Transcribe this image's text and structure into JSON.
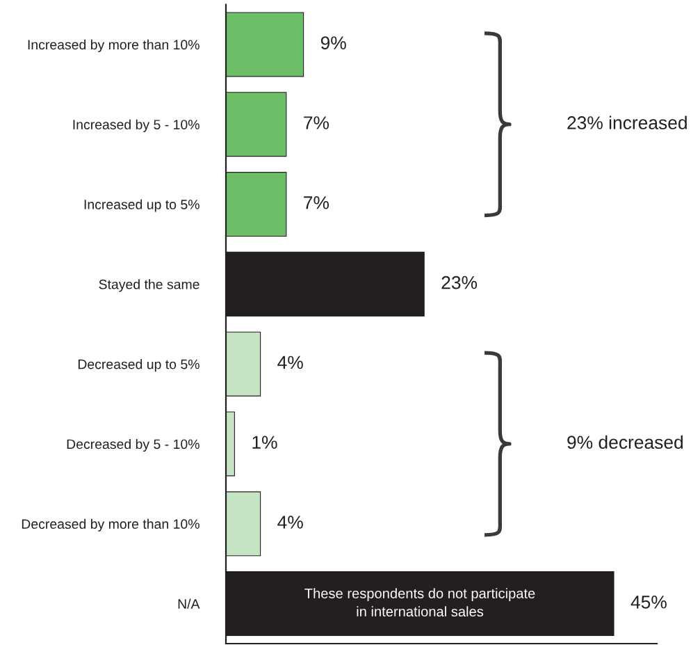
{
  "chart_data": {
    "type": "bar",
    "orientation": "horizontal",
    "categories": [
      "Increased by more than 10%",
      "Increased by 5 - 10%",
      "Increased up to 5%",
      "Stayed the same",
      "Decreased up to 5%",
      "Decreased by 5 - 10%",
      "Decreased by more than 10%",
      "N/A"
    ],
    "values": [
      9,
      7,
      7,
      23,
      4,
      1,
      4,
      45
    ],
    "colors": [
      "#6dbf67",
      "#6dbf67",
      "#6dbf67",
      "#231f20",
      "#c5e4c3",
      "#c5e4c3",
      "#c5e4c3",
      "#231f20"
    ],
    "value_labels": [
      "9%",
      "7%",
      "7%",
      "23%",
      "4%",
      "1%",
      "4%",
      "45%"
    ],
    "xlim": [
      0,
      50
    ],
    "tick_labels": "y",
    "annotations": [
      "23% increased",
      "9% decreased",
      "These respondents do not participate\nin international sales"
    ]
  }
}
